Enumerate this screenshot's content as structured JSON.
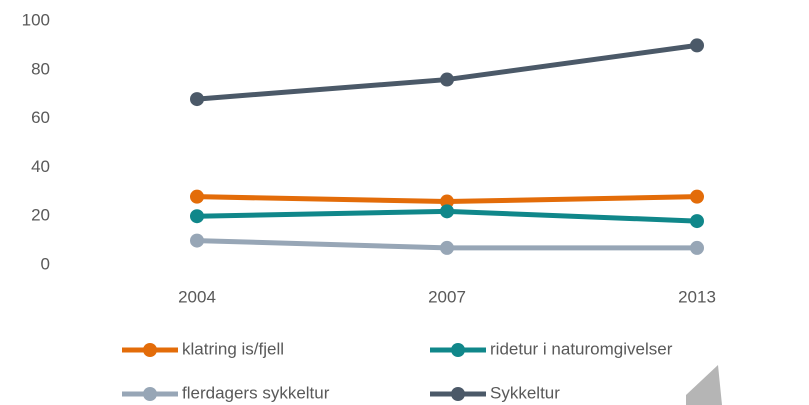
{
  "chart_data": {
    "type": "line",
    "categories": [
      "2004",
      "2007",
      "2013"
    ],
    "series": [
      {
        "name": "klatring is/fjell",
        "color": "#e36c09",
        "values": [
          28,
          26,
          28
        ]
      },
      {
        "name": "ridetur i naturomgivelser",
        "color": "#10878a",
        "values": [
          20,
          22,
          18
        ]
      },
      {
        "name": "flerdagers sykkeltur",
        "color": "#97a6b6",
        "values": [
          10,
          7,
          7
        ]
      },
      {
        "name": "Sykkeltur",
        "color": "#4b5968",
        "values": [
          68,
          76,
          90
        ]
      }
    ],
    "ylim": [
      0,
      100
    ],
    "yticks": [
      0,
      20,
      40,
      60,
      80,
      100
    ],
    "legend": "bottom"
  }
}
